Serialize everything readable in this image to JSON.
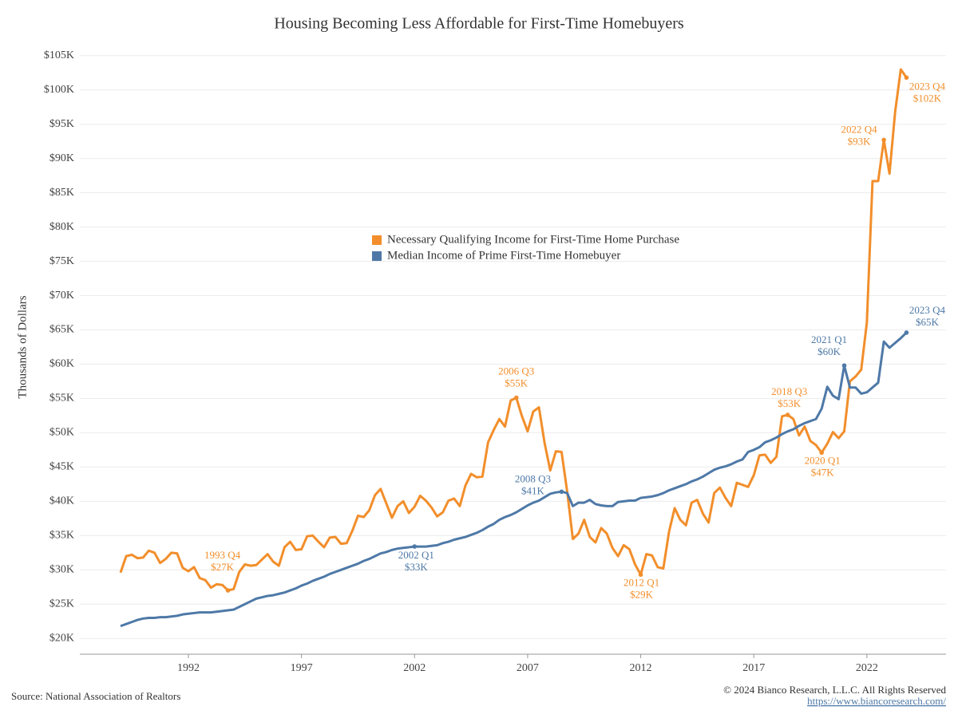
{
  "chart_data": {
    "type": "line",
    "title": "Housing Becoming Less Affordable for First-Time Homebuyers",
    "y_label": "Thousands of Dollars",
    "source": "Source: National Association of Realtors",
    "copyright": "© 2024 Bianco Research, L.L.C. All Rights Reserved",
    "url": "https://www.biancoresearch.com/",
    "legend": "center",
    "grid": true,
    "xlim": [
      1987.2,
      2025.5
    ],
    "xticks": [
      1992,
      1997,
      2002,
      2007,
      2012,
      2017,
      2022
    ],
    "ylim": [
      17.7,
      107.3
    ],
    "yticks": [
      {
        "value": 20,
        "label": "$20K"
      },
      {
        "value": 25,
        "label": "$25K"
      },
      {
        "value": 30,
        "label": "$30K"
      },
      {
        "value": 35,
        "label": "$35K"
      },
      {
        "value": 40,
        "label": "$40K"
      },
      {
        "value": 45,
        "label": "$45K"
      },
      {
        "value": 50,
        "label": "$50K"
      },
      {
        "value": 55,
        "label": "$55K"
      },
      {
        "value": 60,
        "label": "$60K"
      },
      {
        "value": 65,
        "label": "$65K"
      },
      {
        "value": 70,
        "label": "$70K"
      },
      {
        "value": 75,
        "label": "$75K"
      },
      {
        "value": 80,
        "label": "$80K"
      },
      {
        "value": 85,
        "label": "$85K"
      },
      {
        "value": 90,
        "label": "$90K"
      },
      {
        "value": 95,
        "label": "$95K"
      },
      {
        "value": 100,
        "label": "$100K"
      },
      {
        "value": 105,
        "label": "$105K"
      }
    ],
    "x": [
      1989,
      1989.25,
      1989.5,
      1989.75,
      1990,
      1990.25,
      1990.5,
      1990.75,
      1991,
      1991.25,
      1991.5,
      1991.75,
      1992,
      1992.25,
      1992.5,
      1992.75,
      1993,
      1993.25,
      1993.5,
      1993.75,
      1994,
      1994.25,
      1994.5,
      1994.75,
      1995,
      1995.25,
      1995.5,
      1995.75,
      1996,
      1996.25,
      1996.5,
      1996.75,
      1997,
      1997.25,
      1997.5,
      1997.75,
      1998,
      1998.25,
      1998.5,
      1998.75,
      1999,
      1999.25,
      1999.5,
      1999.75,
      2000,
      2000.25,
      2000.5,
      2000.75,
      2001,
      2001.25,
      2001.5,
      2001.75,
      2002,
      2002.25,
      2002.5,
      2002.75,
      2003,
      2003.25,
      2003.5,
      2003.75,
      2004,
      2004.25,
      2004.5,
      2004.75,
      2005,
      2005.25,
      2005.5,
      2005.75,
      2006,
      2006.25,
      2006.5,
      2006.75,
      2007,
      2007.25,
      2007.5,
      2007.75,
      2008,
      2008.25,
      2008.5,
      2008.75,
      2009,
      2009.25,
      2009.5,
      2009.75,
      2010,
      2010.25,
      2010.5,
      2010.75,
      2011,
      2011.25,
      2011.5,
      2011.75,
      2012,
      2012.25,
      2012.5,
      2012.75,
      2013,
      2013.25,
      2013.5,
      2013.75,
      2014,
      2014.25,
      2014.5,
      2014.75,
      2015,
      2015.25,
      2015.5,
      2015.75,
      2016,
      2016.25,
      2016.5,
      2016.75,
      2017,
      2017.25,
      2017.5,
      2017.75,
      2018,
      2018.25,
      2018.5,
      2018.75,
      2019,
      2019.25,
      2019.5,
      2019.75,
      2020,
      2020.25,
      2020.5,
      2020.75,
      2021,
      2021.25,
      2021.5,
      2021.75,
      2022,
      2022.25,
      2022.5,
      2022.75,
      2023,
      2023.25,
      2023.5,
      2023.75
    ],
    "series": [
      {
        "name": "Necessary Qualifying Income for First-Time Home Purchase",
        "color": "#f28e2b",
        "values": [
          29.6,
          32.0,
          32.2,
          31.7,
          31.8,
          32.8,
          32.5,
          31.0,
          31.6,
          32.5,
          32.4,
          30.3,
          29.8,
          30.4,
          28.8,
          28.5,
          27.4,
          27.9,
          27.8,
          27.0,
          27.2,
          29.7,
          30.8,
          30.6,
          30.7,
          31.5,
          32.3,
          31.2,
          30.6,
          33.3,
          34.1,
          32.9,
          33.0,
          34.9,
          35.0,
          34.1,
          33.3,
          34.7,
          34.8,
          33.8,
          33.9,
          35.7,
          37.9,
          37.7,
          38.7,
          40.9,
          41.8,
          39.7,
          37.6,
          39.3,
          40.0,
          38.3,
          39.2,
          40.8,
          40.1,
          39.1,
          37.8,
          38.4,
          40.1,
          40.4,
          39.3,
          42.3,
          44.0,
          43.5,
          43.6,
          48.6,
          50.4,
          52.0,
          50.9,
          54.7,
          55.1,
          52.4,
          50.2,
          53.1,
          53.7,
          48.5,
          44.5,
          47.3,
          47.2,
          41.4,
          34.5,
          35.3,
          37.3,
          34.8,
          34.0,
          36.1,
          35.3,
          33.2,
          32.0,
          33.6,
          33.0,
          30.8,
          29.3,
          32.3,
          32.1,
          30.4,
          30.2,
          35.5,
          39.0,
          37.3,
          36.5,
          39.8,
          40.2,
          38.2,
          36.9,
          41.2,
          42.0,
          40.5,
          39.3,
          42.7,
          42.4,
          42.1,
          43.8,
          46.7,
          46.8,
          45.6,
          46.5,
          52.4,
          52.6,
          52.0,
          49.6,
          50.9,
          48.8,
          48.2,
          47.1,
          48.4,
          50.1,
          49.2,
          50.2,
          57.5,
          58.2,
          59.2,
          66.1,
          86.7,
          86.7,
          92.7,
          87.8,
          96.8,
          103.0,
          101.8
        ],
        "annotations": [
          {
            "label": "1993 Q4",
            "x": 1993.75,
            "value": 27.0,
            "value_label": "$27K"
          },
          {
            "label": "2006 Q3",
            "x": 2006.5,
            "value": 55.1,
            "value_label": "$55K"
          },
          {
            "label": "2012 Q1",
            "x": 2012,
            "value": 29.3,
            "value_label": "$29K"
          },
          {
            "label": "2018 Q3",
            "x": 2018.5,
            "value": 52.6,
            "value_label": "$53K"
          },
          {
            "label": "2020 Q1",
            "x": 2020,
            "value": 47.1,
            "value_label": "$47K"
          },
          {
            "label": "2022 Q4",
            "x": 2022.75,
            "value": 92.7,
            "value_label": "$93K"
          },
          {
            "label": "2023 Q4",
            "x": 2023.75,
            "value": 101.8,
            "value_label": "$102K"
          }
        ]
      },
      {
        "name": "Median Income of Prime First-Time Homebuyer",
        "color": "#4e79a7",
        "values": [
          21.8,
          22.1,
          22.4,
          22.7,
          22.9,
          23.0,
          23.0,
          23.1,
          23.1,
          23.2,
          23.3,
          23.5,
          23.6,
          23.7,
          23.8,
          23.8,
          23.8,
          23.9,
          24.0,
          24.1,
          24.2,
          24.6,
          25.0,
          25.4,
          25.8,
          26.0,
          26.2,
          26.3,
          26.5,
          26.7,
          27.0,
          27.3,
          27.7,
          28.0,
          28.4,
          28.7,
          29.0,
          29.4,
          29.7,
          30.0,
          30.3,
          30.6,
          30.9,
          31.3,
          31.6,
          32.0,
          32.4,
          32.6,
          32.9,
          33.1,
          33.2,
          33.3,
          33.4,
          33.4,
          33.4,
          33.5,
          33.6,
          33.9,
          34.1,
          34.4,
          34.6,
          34.8,
          35.1,
          35.4,
          35.8,
          36.3,
          36.7,
          37.3,
          37.7,
          38.0,
          38.4,
          38.9,
          39.4,
          39.8,
          40.1,
          40.6,
          41.1,
          41.3,
          41.4,
          41.2,
          39.3,
          39.8,
          39.8,
          40.2,
          39.6,
          39.4,
          39.3,
          39.3,
          39.9,
          40.0,
          40.1,
          40.1,
          40.5,
          40.6,
          40.7,
          40.9,
          41.2,
          41.6,
          41.9,
          42.2,
          42.5,
          42.9,
          43.2,
          43.6,
          44.1,
          44.6,
          44.9,
          45.1,
          45.4,
          45.8,
          46.1,
          47.2,
          47.5,
          47.9,
          48.6,
          48.9,
          49.3,
          49.8,
          50.2,
          50.5,
          51.0,
          51.4,
          51.7,
          52.0,
          53.5,
          56.7,
          55.4,
          54.9,
          59.8,
          56.6,
          56.6,
          55.7,
          55.9,
          56.6,
          57.3,
          63.3,
          62.4,
          63.1,
          63.8,
          64.6
        ],
        "annotations": [
          {
            "label": "2002 Q1",
            "x": 2002,
            "value": 33.4,
            "value_label": "$33K"
          },
          {
            "label": "2008 Q3",
            "x": 2008.5,
            "value": 41.4,
            "value_label": "$41K"
          },
          {
            "label": "2021 Q1",
            "x": 2021,
            "value": 59.8,
            "value_label": "$60K"
          },
          {
            "label": "2023 Q4",
            "x": 2023.75,
            "value": 64.6,
            "value_label": "$65K"
          }
        ]
      }
    ]
  }
}
